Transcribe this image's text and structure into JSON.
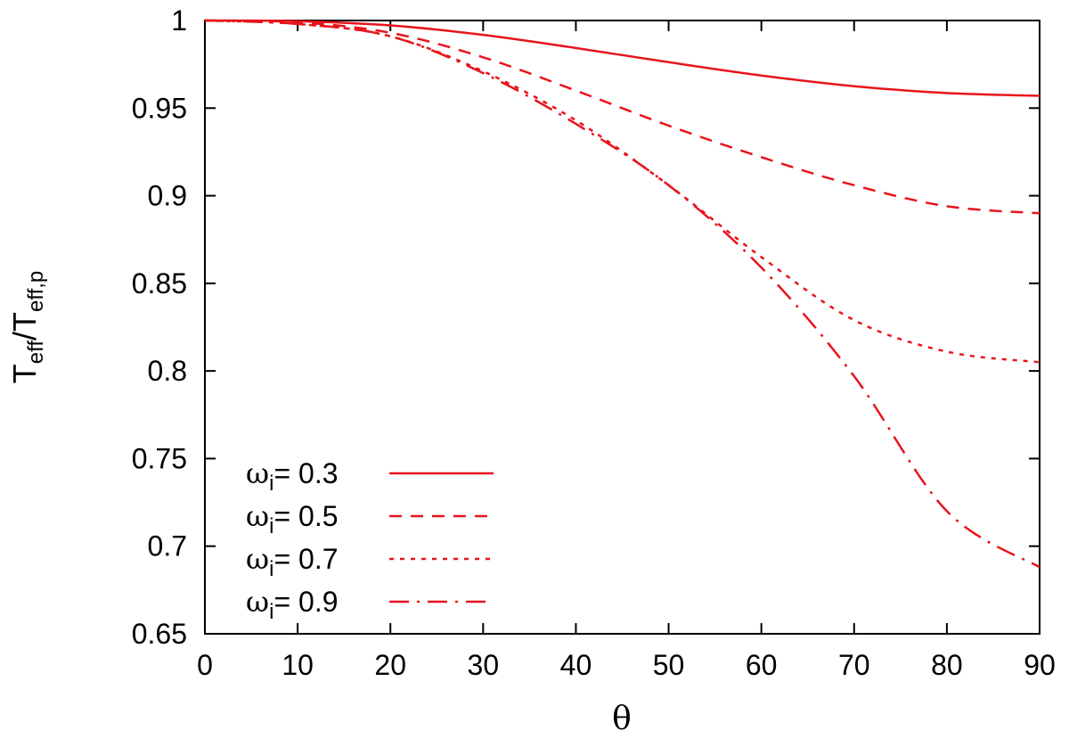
{
  "chart_data": {
    "type": "line",
    "xlabel": "θ",
    "ylabel": {
      "base": "T",
      "num_sub": "eff",
      "sep": "/",
      "den_sub": "eff,p"
    },
    "xlim": [
      0,
      90
    ],
    "ylim": [
      0.65,
      1
    ],
    "xticks": [
      0,
      10,
      20,
      30,
      40,
      50,
      60,
      70,
      80,
      90
    ],
    "yticks": [
      0.65,
      0.7,
      0.75,
      0.8,
      0.85,
      0.9,
      0.95,
      1
    ],
    "ytick_labels": [
      "0.65",
      "0.7",
      "0.75",
      "0.8",
      "0.85",
      "0.9",
      "0.95",
      "1"
    ],
    "grid": false,
    "legend_position": "bottom-left",
    "color": "#e8141c",
    "series": [
      {
        "name": "ωi= 0.3",
        "legend": {
          "sym": "ω",
          "sub": "i",
          "text": "= 0.3"
        },
        "dash": "solid",
        "x": [
          0,
          10,
          20,
          30,
          40,
          50,
          60,
          70,
          80,
          90
        ],
        "y": [
          1.0,
          0.9996,
          0.9972,
          0.9918,
          0.9843,
          0.9762,
          0.9686,
          0.9625,
          0.9586,
          0.957
        ]
      },
      {
        "name": "ωi= 0.5",
        "legend": {
          "sym": "ω",
          "sub": "i",
          "text": "= 0.5"
        },
        "dash": "dashed",
        "x": [
          0,
          10,
          20,
          30,
          40,
          50,
          60,
          70,
          80,
          90
        ],
        "y": [
          1.0,
          0.999,
          0.993,
          0.979,
          0.96,
          0.94,
          0.922,
          0.906,
          0.894,
          0.89
        ]
      },
      {
        "name": "ωi= 0.7",
        "legend": {
          "sym": "ω",
          "sub": "i",
          "text": "= 0.7"
        },
        "dash": "dotted",
        "x": [
          0,
          10,
          20,
          30,
          40,
          50,
          60,
          70,
          80,
          90
        ],
        "y": [
          1.0,
          0.998,
          0.991,
          0.971,
          0.943,
          0.906,
          0.865,
          0.829,
          0.811,
          0.805
        ]
      },
      {
        "name": "ωi= 0.9",
        "legend": {
          "sym": "ω",
          "sub": "i",
          "text": "= 0.9"
        },
        "dash": "dashdot",
        "x": [
          0,
          10,
          20,
          30,
          40,
          50,
          60,
          70,
          80,
          90
        ],
        "y": [
          1.0,
          0.998,
          0.991,
          0.97,
          0.941,
          0.906,
          0.859,
          0.797,
          0.72,
          0.688
        ]
      }
    ]
  }
}
